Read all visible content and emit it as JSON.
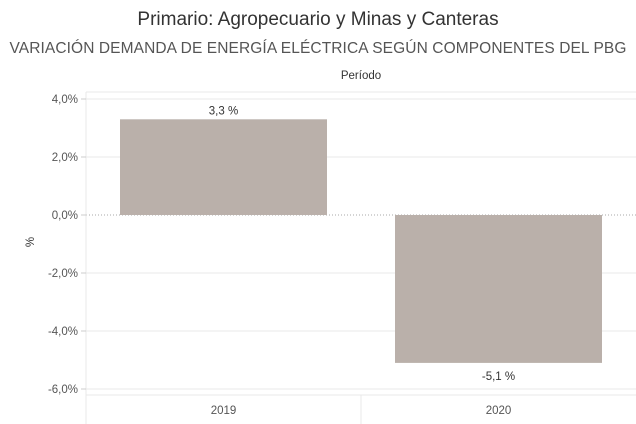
{
  "title": "Primario: Agropecuario y Minas y Canteras",
  "subtitle": "VARIACIÓN DEMANDA DE ENERGÍA ELÉCTRICA SEGÚN COMPONENTES DEL PBG",
  "colors": {
    "bar": "#bab0aa",
    "grid": "#e9e9e9",
    "zero_line": "#aaaaaa",
    "text": "#555555"
  },
  "chart_data": {
    "type": "bar",
    "title": "Primario: Agropecuario y Minas y Canteras",
    "subtitle": "VARIACIÓN DEMANDA DE ENERGÍA ELÉCTRICA SEGÚN COMPONENTES DEL PBG",
    "xlabel": "Período",
    "ylabel": "%",
    "categories": [
      "2019",
      "2020"
    ],
    "values": [
      3.3,
      -5.1
    ],
    "data_labels": [
      "3,3 %",
      "-5,1 %"
    ],
    "ylim": [
      -6.0,
      4.0
    ],
    "yticks": [
      4.0,
      2.0,
      0.0,
      -2.0,
      -4.0,
      -6.0
    ],
    "ytick_labels": [
      "4,0%",
      "2,0%",
      "0,0%",
      "-2,0%",
      "-4,0%",
      "-6,0%"
    ],
    "grid": true,
    "xlabel_position": "top"
  }
}
